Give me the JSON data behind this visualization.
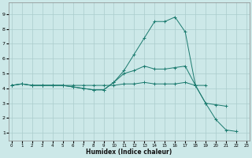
{
  "xlabel": "Humidex (Indice chaleur)",
  "background_color": "#cce8e8",
  "grid_color": "#aacccc",
  "line_color": "#1a7a6e",
  "x_ticks": [
    0,
    1,
    2,
    3,
    4,
    5,
    6,
    7,
    8,
    9,
    10,
    11,
    12,
    13,
    14,
    15,
    16,
    17,
    18,
    19,
    20,
    21,
    22,
    23
  ],
  "y_ticks": [
    1,
    2,
    3,
    4,
    5,
    6,
    7,
    8,
    9
  ],
  "xlim": [
    -0.3,
    23.3
  ],
  "ylim": [
    0.5,
    9.8
  ],
  "series": [
    {
      "x": [
        0,
        1,
        2,
        3,
        4,
        5,
        6,
        7,
        8,
        9,
        10,
        11,
        12,
        13,
        14,
        15,
        16,
        17,
        18,
        19
      ],
      "y": [
        4.2,
        4.3,
        4.2,
        4.2,
        4.2,
        4.2,
        4.2,
        4.2,
        4.2,
        4.2,
        4.2,
        4.3,
        4.3,
        4.4,
        4.3,
        4.3,
        4.3,
        4.4,
        4.2,
        4.2
      ]
    },
    {
      "x": [
        0,
        1,
        2,
        3,
        4,
        5,
        6,
        7,
        8,
        9,
        10,
        11,
        12,
        13,
        14,
        15,
        16,
        17,
        18,
        19,
        20,
        21
      ],
      "y": [
        4.2,
        4.3,
        4.2,
        4.2,
        4.2,
        4.2,
        4.1,
        4.0,
        3.9,
        3.9,
        4.4,
        5.0,
        5.2,
        5.5,
        5.3,
        5.3,
        5.4,
        5.5,
        4.2,
        3.0,
        2.9,
        2.8
      ]
    },
    {
      "x": [
        0,
        1,
        2,
        3,
        4,
        5,
        6,
        7,
        8,
        9,
        10,
        11,
        12,
        13,
        14,
        15,
        16,
        17,
        18,
        19,
        20,
        21,
        22
      ],
      "y": [
        4.2,
        4.3,
        4.2,
        4.2,
        4.2,
        4.2,
        4.1,
        4.0,
        3.9,
        3.9,
        4.4,
        5.2,
        6.3,
        7.4,
        8.5,
        8.5,
        8.8,
        7.8,
        4.2,
        3.0,
        1.9,
        1.2,
        1.1
      ]
    }
  ]
}
